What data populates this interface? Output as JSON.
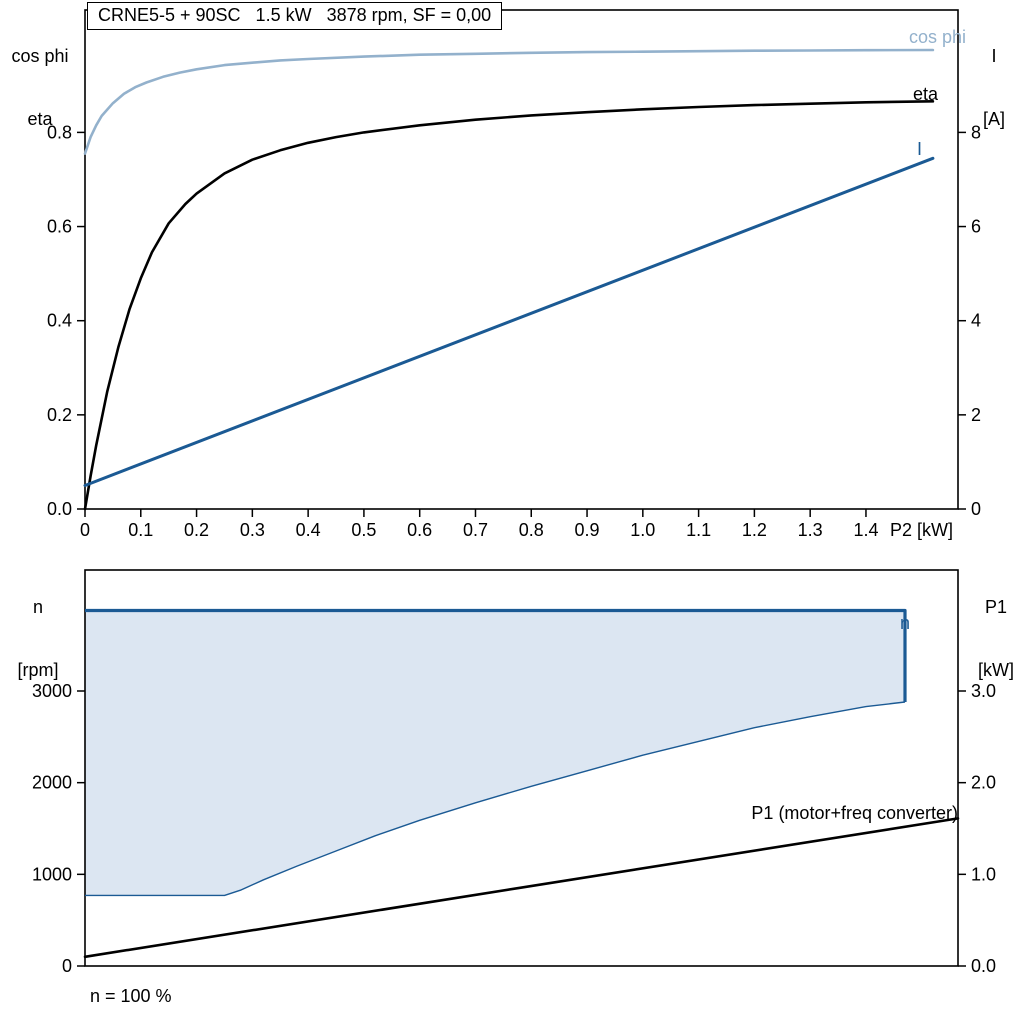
{
  "title_box": {
    "text": "CRNE5-5 + 90SC   1.5 kW   3878 rpm, SF = 0,00"
  },
  "colors": {
    "black": "#000000",
    "dark_blue": "#1b5a94",
    "light_blue": "#93b1cc",
    "envelope_fill": "#dce6f2"
  },
  "chart_data": [
    {
      "name": "performance-curves",
      "type": "line",
      "x_axis": {
        "label": "P2 [kW]",
        "min": 0,
        "max": 1.565,
        "ticks": [
          0,
          0.1,
          0.2,
          0.3,
          0.4,
          0.5,
          0.6,
          0.7,
          0.8,
          0.9,
          1.0,
          1.1,
          1.2,
          1.3,
          1.4
        ],
        "tick_labels": [
          "0",
          "0.1",
          "0.2",
          "0.3",
          "0.4",
          "0.5",
          "0.6",
          "0.7",
          "0.8",
          "0.9",
          "1.0",
          "1.1",
          "1.2",
          "1.3",
          "1.4"
        ]
      },
      "y_left": {
        "title_lines": [
          "cos phi",
          "eta"
        ],
        "min": 0,
        "max": 1.06,
        "ticks": [
          0,
          0.2,
          0.4,
          0.6,
          0.8
        ],
        "tick_labels": [
          "0.0",
          "0.2",
          "0.4",
          "0.6",
          "0.8"
        ]
      },
      "y_right": {
        "title_lines": [
          "I",
          "[A]"
        ],
        "min": 0,
        "max": 10.6,
        "ticks": [
          0,
          2,
          4,
          6,
          8
        ],
        "tick_labels": [
          "0",
          "2",
          "4",
          "6",
          "8"
        ]
      },
      "series": [
        {
          "name": "cos phi",
          "axis": "left",
          "color": "#93b1cc",
          "width": 2.6,
          "points": [
            [
              0,
              0.755
            ],
            [
              0.01,
              0.79
            ],
            [
              0.02,
              0.815
            ],
            [
              0.03,
              0.835
            ],
            [
              0.05,
              0.862
            ],
            [
              0.07,
              0.882
            ],
            [
              0.09,
              0.896
            ],
            [
              0.11,
              0.906
            ],
            [
              0.14,
              0.918
            ],
            [
              0.17,
              0.927
            ],
            [
              0.2,
              0.934
            ],
            [
              0.25,
              0.943
            ],
            [
              0.3,
              0.948
            ],
            [
              0.35,
              0.953
            ],
            [
              0.4,
              0.956
            ],
            [
              0.5,
              0.961
            ],
            [
              0.6,
              0.965
            ],
            [
              0.7,
              0.967
            ],
            [
              0.8,
              0.969
            ],
            [
              0.9,
              0.9705
            ],
            [
              1.0,
              0.9715
            ],
            [
              1.1,
              0.9725
            ],
            [
              1.2,
              0.9735
            ],
            [
              1.3,
              0.974
            ],
            [
              1.4,
              0.9745
            ],
            [
              1.52,
              0.975
            ]
          ]
        },
        {
          "name": "eta",
          "axis": "left",
          "color": "#000000",
          "width": 2.6,
          "points": [
            [
              0,
              0
            ],
            [
              0.01,
              0.07
            ],
            [
              0.02,
              0.135
            ],
            [
              0.04,
              0.25
            ],
            [
              0.06,
              0.345
            ],
            [
              0.08,
              0.425
            ],
            [
              0.1,
              0.49
            ],
            [
              0.12,
              0.545
            ],
            [
              0.15,
              0.607
            ],
            [
              0.18,
              0.648
            ],
            [
              0.2,
              0.67
            ],
            [
              0.25,
              0.713
            ],
            [
              0.3,
              0.742
            ],
            [
              0.35,
              0.762
            ],
            [
              0.4,
              0.778
            ],
            [
              0.45,
              0.79
            ],
            [
              0.5,
              0.8
            ],
            [
              0.6,
              0.815
            ],
            [
              0.7,
              0.827
            ],
            [
              0.8,
              0.836
            ],
            [
              0.9,
              0.843
            ],
            [
              1.0,
              0.849
            ],
            [
              1.1,
              0.854
            ],
            [
              1.2,
              0.858
            ],
            [
              1.3,
              0.861
            ],
            [
              1.4,
              0.864
            ],
            [
              1.52,
              0.866
            ]
          ]
        },
        {
          "name": "I",
          "axis": "right",
          "color": "#1b5a94",
          "width": 3,
          "points": [
            [
              0,
              0.5
            ],
            [
              1.52,
              7.45
            ]
          ]
        }
      ]
    },
    {
      "name": "speed-power-chart",
      "type": "area-line",
      "x_axis": {
        "label": "",
        "min": 0,
        "max": 1.565,
        "ticks": [],
        "tick_labels": []
      },
      "y_left": {
        "title_lines": [
          "n",
          "[rpm]"
        ],
        "min": 0,
        "max": 4320,
        "ticks": [
          0,
          1000,
          2000,
          3000
        ],
        "tick_labels": [
          "0",
          "1000",
          "2000",
          "3000"
        ]
      },
      "y_right": {
        "title_lines": [
          "P1",
          "[kW]"
        ],
        "min": 0,
        "max": 4.32,
        "ticks": [
          0,
          1,
          2,
          3
        ],
        "tick_labels": [
          "0.0",
          "1.0",
          "2.0",
          "3.0"
        ]
      },
      "envelope": {
        "label": "n",
        "fill": "#dce6f2",
        "line_color": "#1b5a94",
        "top_rpm": 3878,
        "x_end": 1.47,
        "bottom_at_end_rpm": 2880,
        "lower_points": [
          [
            0,
            770
          ],
          [
            0.25,
            770
          ],
          [
            0.28,
            830
          ],
          [
            0.32,
            940
          ],
          [
            0.38,
            1090
          ],
          [
            0.45,
            1255
          ],
          [
            0.52,
            1420
          ],
          [
            0.6,
            1590
          ],
          [
            0.7,
            1780
          ],
          [
            0.8,
            1960
          ],
          [
            0.9,
            2130
          ],
          [
            1.0,
            2300
          ],
          [
            1.1,
            2450
          ],
          [
            1.2,
            2600
          ],
          [
            1.3,
            2720
          ],
          [
            1.4,
            2830
          ],
          [
            1.47,
            2880
          ]
        ]
      },
      "series": [
        {
          "name": "P1 (motor+freq converter)",
          "axis": "right",
          "color": "#000000",
          "width": 2.6,
          "points": [
            [
              0,
              0.1
            ],
            [
              1.565,
              1.61
            ]
          ]
        }
      ],
      "footnote": "n = 100 %"
    }
  ]
}
